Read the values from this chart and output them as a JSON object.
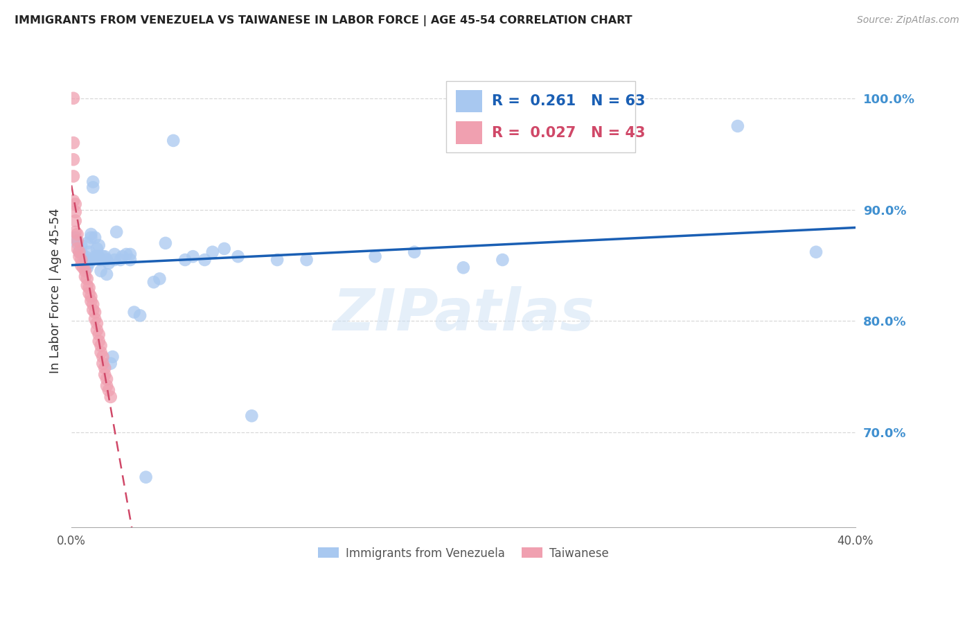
{
  "title": "IMMIGRANTS FROM VENEZUELA VS TAIWANESE IN LABOR FORCE | AGE 45-54 CORRELATION CHART",
  "source": "Source: ZipAtlas.com",
  "ylabel": "In Labor Force | Age 45-54",
  "xlim": [
    0.0,
    0.4
  ],
  "ylim": [
    0.615,
    1.04
  ],
  "yticks": [
    0.7,
    0.8,
    0.9,
    1.0
  ],
  "ytick_labels": [
    "70.0%",
    "80.0%",
    "90.0%",
    "100.0%"
  ],
  "xtick_labels": [
    "0.0%",
    "",
    "",
    "",
    "",
    "",
    "",
    "",
    "40.0%"
  ],
  "xticks": [
    0.0,
    0.05,
    0.1,
    0.15,
    0.2,
    0.25,
    0.3,
    0.35,
    0.4
  ],
  "color_venezuela": "#a8c8f0",
  "color_taiwanese": "#f0a0b0",
  "line_color_venezuela": "#1a5fb4",
  "line_color_taiwanese": "#c0404080",
  "R_venezuela": 0.261,
  "N_venezuela": 63,
  "R_taiwanese": 0.027,
  "N_taiwanese": 43,
  "venezuela_x": [
    0.002,
    0.003,
    0.004,
    0.005,
    0.005,
    0.006,
    0.007,
    0.007,
    0.008,
    0.008,
    0.009,
    0.009,
    0.01,
    0.01,
    0.011,
    0.011,
    0.012,
    0.012,
    0.013,
    0.013,
    0.014,
    0.014,
    0.015,
    0.015,
    0.016,
    0.017,
    0.018,
    0.019,
    0.02,
    0.021,
    0.022,
    0.023,
    0.025,
    0.026,
    0.028,
    0.03,
    0.032,
    0.035,
    0.038,
    0.042,
    0.045,
    0.048,
    0.052,
    0.058,
    0.062,
    0.068,
    0.072,
    0.078,
    0.085,
    0.092,
    0.105,
    0.12,
    0.155,
    0.175,
    0.2,
    0.22,
    0.34,
    0.38,
    0.008,
    0.013,
    0.018,
    0.022,
    0.03
  ],
  "venezuela_y": [
    0.875,
    0.87,
    0.862,
    0.868,
    0.862,
    0.858,
    0.858,
    0.855,
    0.852,
    0.87,
    0.862,
    0.852,
    0.878,
    0.875,
    0.92,
    0.925,
    0.858,
    0.875,
    0.858,
    0.865,
    0.868,
    0.858,
    0.855,
    0.845,
    0.858,
    0.858,
    0.842,
    0.852,
    0.762,
    0.768,
    0.855,
    0.88,
    0.855,
    0.858,
    0.86,
    0.86,
    0.808,
    0.805,
    0.66,
    0.835,
    0.838,
    0.87,
    0.962,
    0.855,
    0.858,
    0.855,
    0.862,
    0.865,
    0.858,
    0.715,
    0.855,
    0.855,
    0.858,
    0.862,
    0.848,
    0.855,
    0.975,
    0.862,
    0.848,
    0.858,
    0.855,
    0.86,
    0.855
  ],
  "taiwanese_x": [
    0.001,
    0.001,
    0.001,
    0.001,
    0.001,
    0.002,
    0.002,
    0.002,
    0.002,
    0.003,
    0.003,
    0.003,
    0.004,
    0.004,
    0.005,
    0.005,
    0.006,
    0.007,
    0.007,
    0.008,
    0.008,
    0.009,
    0.009,
    0.01,
    0.01,
    0.011,
    0.011,
    0.012,
    0.012,
    0.013,
    0.013,
    0.014,
    0.014,
    0.015,
    0.015,
    0.016,
    0.016,
    0.017,
    0.017,
    0.018,
    0.018,
    0.019,
    0.02
  ],
  "taiwanese_y": [
    1.0,
    0.96,
    0.945,
    0.93,
    0.908,
    0.905,
    0.898,
    0.89,
    0.88,
    0.878,
    0.872,
    0.865,
    0.862,
    0.858,
    0.855,
    0.85,
    0.848,
    0.845,
    0.84,
    0.838,
    0.832,
    0.83,
    0.825,
    0.822,
    0.818,
    0.815,
    0.81,
    0.808,
    0.802,
    0.798,
    0.792,
    0.788,
    0.782,
    0.778,
    0.772,
    0.768,
    0.762,
    0.758,
    0.752,
    0.748,
    0.742,
    0.738,
    0.732
  ],
  "background_color": "#ffffff",
  "watermark": "ZIPatlas",
  "axis_color": "#4090d0",
  "grid_color": "#d8d8d8"
}
